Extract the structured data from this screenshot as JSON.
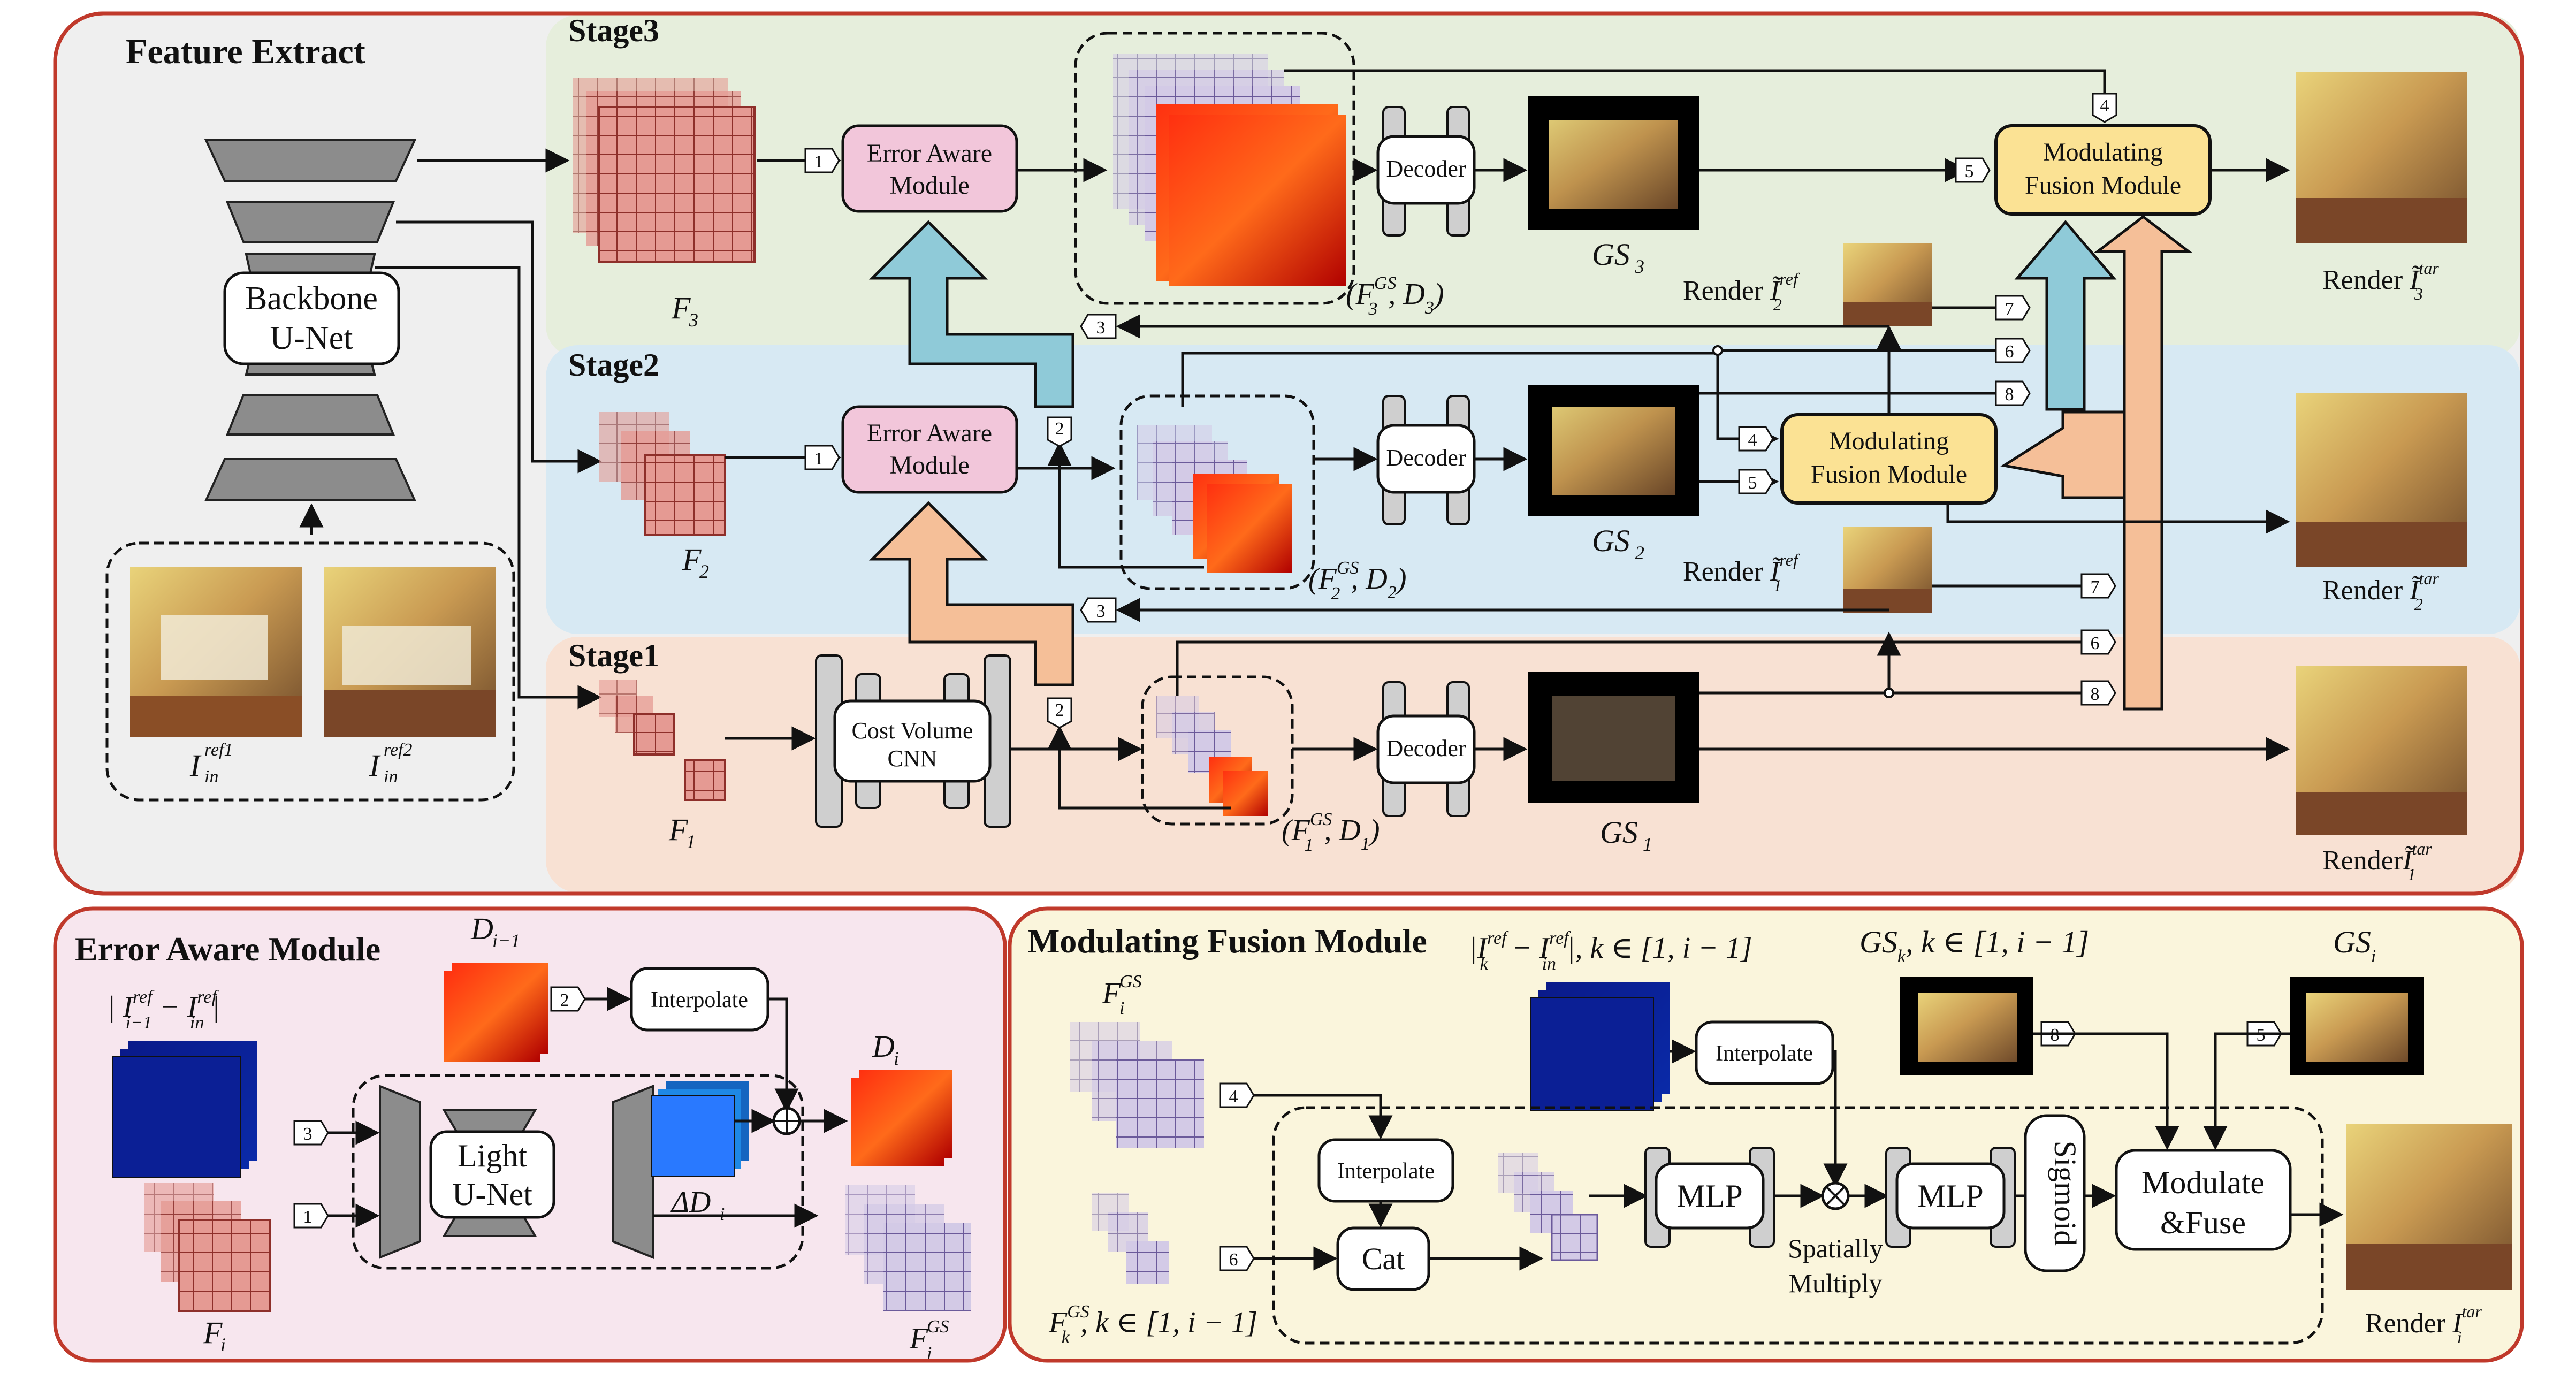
{
  "colors": {
    "panel_border": "#c0392b",
    "feature_bg": "#efefef",
    "stage3_bg": "#e6eedc",
    "stage2_bg": "#d7e9f3",
    "stage1_bg": "#f8e1d3",
    "eam_bg": "#f7e6ee",
    "mfm_bg": "#faf5dc",
    "eam_box": "#f2c6da",
    "mfm_box": "#fbe294",
    "feature_red": "#e59a93",
    "feature_purple": "#cbc1e1",
    "arrow_blue": "#8fcad8",
    "arrow_orange": "#f5bf98"
  },
  "feature_extract": {
    "title": "Feature Extract",
    "backbone": [
      "Backbone",
      "U-Net"
    ],
    "input_labels": [
      "ref1",
      "ref2"
    ]
  },
  "stages": {
    "stage3": "Stage3",
    "stage2": "Stage2",
    "stage1": "Stage1"
  },
  "labels": {
    "eam": [
      "Error Aware",
      "Module"
    ],
    "mfm": [
      "Modulating",
      "Fusion Module"
    ],
    "decoder": "Decoder",
    "cost_volume": [
      "Cost Volume",
      "CNN"
    ],
    "render": "Render",
    "gs": "GS",
    "f": "F",
    "interpolate": "Interpolate",
    "light_unet": [
      "Light",
      "U-Net"
    ],
    "mlp": "MLP",
    "sigmoid": "Sigmoid",
    "modulate": [
      "Modulate",
      "&Fuse"
    ],
    "cat": "Cat",
    "spatially": [
      "Spatially",
      "Multiply"
    ]
  },
  "subscripts": {
    "f3": "3",
    "f2": "2",
    "f1": "1",
    "tar": "tar",
    "ref": "ref",
    "gs_sup": "GS"
  },
  "eam_panel": {
    "title": "Error Aware Module",
    "diff": "| I",
    "d_prev": "D",
    "d_cur": "D",
    "delta": "ΔD",
    "fi": "F"
  },
  "mfm_panel": {
    "title": "Modulating Fusion Module",
    "range": "k ∈ [1, i − 1]",
    "gsk": "GS",
    "gsi": "GS"
  },
  "markers": [
    "1",
    "2",
    "3",
    "4",
    "5",
    "6",
    "7",
    "8"
  ]
}
